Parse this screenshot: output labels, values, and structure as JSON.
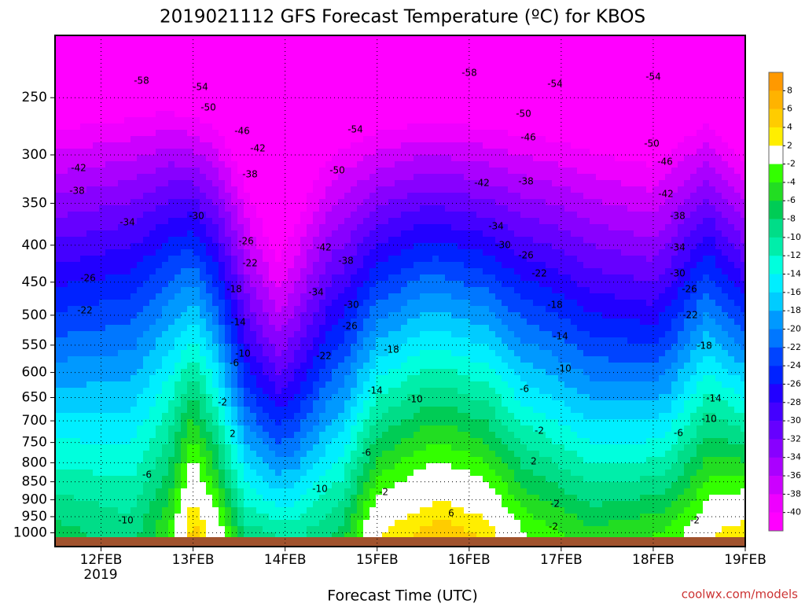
{
  "chart_data": {
    "type": "contour",
    "title": "2019021112 GFS Forecast Temperature (ºC) for KBOS",
    "xlabel": "Forecast Time (UTC)",
    "year_label": "2019",
    "watermark": "coolwx.com/models",
    "xlim": [
      0,
      180
    ],
    "xticks": [
      {
        "value": 12,
        "label": "12FEB"
      },
      {
        "value": 36,
        "label": "13FEB"
      },
      {
        "value": 60,
        "label": "14FEB"
      },
      {
        "value": 84,
        "label": "15FEB"
      },
      {
        "value": 108,
        "label": "16FEB"
      },
      {
        "value": 132,
        "label": "17FEB"
      },
      {
        "value": 156,
        "label": "18FEB"
      },
      {
        "value": 180,
        "label": "19FEB"
      }
    ],
    "ylim": [
      1045,
      205
    ],
    "ylog": true,
    "yticks": [
      250,
      300,
      350,
      400,
      450,
      500,
      550,
      600,
      650,
      700,
      750,
      800,
      850,
      900,
      950,
      1000
    ],
    "grid": true,
    "colorbar": {
      "levels": [
        8,
        6,
        4,
        2,
        -2,
        -4,
        -6,
        -8,
        -10,
        -12,
        -14,
        -16,
        -18,
        -20,
        -22,
        -24,
        -26,
        -28,
        -30,
        -32,
        -34,
        -36,
        -38,
        -40
      ],
      "colors": [
        "#ff9900",
        "#ffb300",
        "#ffcc00",
        "#ffee00",
        "#ffffff",
        "#33ff00",
        "#22dd22",
        "#00cc55",
        "#00dd88",
        "#00eeaa",
        "#00ffdd",
        "#00eeff",
        "#00ccff",
        "#0099ff",
        "#0077ff",
        "#0044ff",
        "#0022ff",
        "#2200ff",
        "#4400ff",
        "#6600ff",
        "#8800ff",
        "#aa00ff",
        "#cc00ff",
        "#ee00ff",
        "#ff00ff"
      ]
    },
    "contour_labels": [
      -58,
      -54,
      -50,
      -46,
      -42,
      -38,
      -34,
      -30,
      -26,
      -22,
      -18,
      -14,
      -10,
      -6,
      -2,
      2,
      -42,
      -38,
      -26,
      -22,
      -6,
      -10,
      -58,
      -54,
      -50,
      -46,
      -42,
      -38,
      -34,
      -30,
      -26,
      -22,
      -18,
      -14,
      -10,
      -6,
      -2,
      2,
      6,
      -54,
      -50,
      -42,
      -38,
      -34,
      -30,
      -26,
      -22,
      -18,
      -14,
      -10,
      -6,
      -2,
      -10,
      -54,
      -50,
      -46,
      -42,
      -38,
      -34,
      -30,
      -26,
      -22,
      -18,
      -14,
      -10,
      -6,
      -2,
      -2,
      -2
    ]
  }
}
